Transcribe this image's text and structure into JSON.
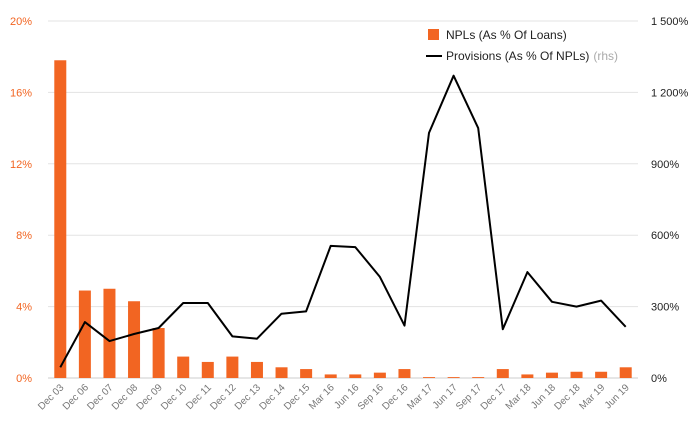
{
  "chart_data": {
    "type": "bar",
    "categories": [
      "Dec 03",
      "Dec 06",
      "Dec 07",
      "Dec 08",
      "Dec 09",
      "Dec 10",
      "Dec 11",
      "Dec 12",
      "Dec 13",
      "Dec 14",
      "Dec 15",
      "Mar 16",
      "Jun 16",
      "Sep 16",
      "Dec 16",
      "Mar 17",
      "Jun 17",
      "Sep 17",
      "Dec 17",
      "Mar 18",
      "Jun 18",
      "Dec 18",
      "Mar 19",
      "Jun 19"
    ],
    "series": [
      {
        "name": "NPLs (As % Of Loans)",
        "type": "bar",
        "axis": "left",
        "color": "#F26522",
        "values": [
          17.8,
          4.9,
          5.0,
          4.3,
          2.8,
          1.2,
          0.9,
          1.2,
          0.9,
          0.6,
          0.5,
          0.2,
          0.2,
          0.3,
          0.5,
          0.05,
          0.05,
          0.05,
          0.5,
          0.2,
          0.3,
          0.35,
          0.35,
          0.6
        ]
      },
      {
        "name": "Provisions (As % Of NPLs)",
        "type": "line",
        "axis": "right",
        "color": "#000000",
        "values": [
          45,
          235,
          155,
          185,
          210,
          315,
          315,
          175,
          165,
          270,
          280,
          555,
          550,
          425,
          220,
          1030,
          1270,
          1050,
          205,
          445,
          320,
          300,
          325,
          215
        ]
      }
    ],
    "left_axis": {
      "range": [
        0,
        20
      ],
      "ticks": [
        0,
        4,
        8,
        12,
        16,
        20
      ],
      "tick_labels": [
        "0%",
        "4%",
        "8%",
        "12%",
        "16%",
        "20%"
      ],
      "color": "#F26522"
    },
    "right_axis": {
      "range": [
        0,
        1500
      ],
      "ticks": [
        0,
        300,
        600,
        900,
        1200,
        1500
      ],
      "tick_labels": [
        "0%",
        "300%",
        "600%",
        "900%",
        "1 200%",
        "1 500%"
      ],
      "color": "#222222"
    },
    "grid": true,
    "legend": {
      "placement": "top-right",
      "items": [
        {
          "label": "NPLs (As % Of Loans)",
          "suffix": "",
          "marker": "square"
        },
        {
          "label": "Provisions (As % Of NPLs)",
          "suffix": "(rhs)",
          "marker": "line"
        }
      ]
    }
  }
}
